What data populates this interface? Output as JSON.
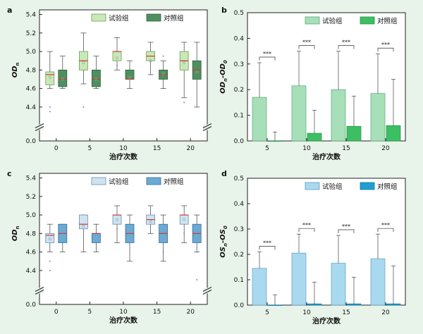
{
  "colors": {
    "background": "#e8f3e9",
    "boxTest": "#c9e8b8",
    "boxTestStroke": "#6c9e52",
    "boxCtrl": "#4f8f5f",
    "boxCtrlStroke": "#2f5f3a",
    "barTestB": "#a6dfb8",
    "barCtrlB": "#3cbf63",
    "boxTestD": "#cfe3f1",
    "boxCtrlD": "#6aaad5",
    "barTestD": "#a9d9ee",
    "barCtrlD": "#1fa0d0",
    "median": "#d0382b"
  },
  "chart_data": [
    {
      "panel": "a",
      "type": "box",
      "xlabel": "治疗次数",
      "ylabel_main": "OD",
      "ylabel_sub": "n",
      "categories": [
        "0",
        "5",
        "10",
        "15",
        "20"
      ],
      "yticks_upper": [
        "4.4",
        "4.6",
        "4.8",
        "5.0",
        "5.2",
        "5.4"
      ],
      "ytick_break": "0.0",
      "ylim_upper": [
        4.3,
        5.45
      ],
      "legend": [
        "试验组",
        "对照组"
      ],
      "series": [
        {
          "name": "试验组",
          "color_key": "boxTest",
          "boxes": [
            {
              "min": 4.6,
              "q1": 4.64,
              "median": 4.75,
              "mean": 4.72,
              "q3": 4.78,
              "max": 5.0,
              "outliers": [
                4.4,
                4.35
              ]
            },
            {
              "min": 4.65,
              "q1": 4.8,
              "median": 4.9,
              "mean": 4.88,
              "q3": 5.0,
              "max": 5.2,
              "outliers": [
                4.4
              ]
            },
            {
              "min": 4.8,
              "q1": 4.9,
              "median": 5.0,
              "mean": 4.93,
              "q3": 5.0,
              "max": 5.15,
              "outliers": [
                4.85
              ]
            },
            {
              "min": 4.75,
              "q1": 4.9,
              "median": 4.95,
              "mean": 4.9,
              "q3": 5.0,
              "max": 5.1,
              "outliers": [
                4.75
              ]
            },
            {
              "min": 4.5,
              "q1": 4.8,
              "median": 4.9,
              "mean": 4.88,
              "q3": 5.0,
              "max": 5.1,
              "outliers": [
                4.45
              ]
            }
          ]
        },
        {
          "name": "对照组",
          "color_key": "boxCtrl",
          "boxes": [
            {
              "min": 4.6,
              "q1": 4.62,
              "median": 4.7,
              "mean": 4.7,
              "q3": 4.8,
              "max": 4.95,
              "outliers": []
            },
            {
              "min": 4.6,
              "q1": 4.62,
              "median": 4.7,
              "mean": 4.7,
              "q3": 4.8,
              "max": 4.95,
              "outliers": []
            },
            {
              "min": 4.6,
              "q1": 4.7,
              "median": 4.7,
              "mean": 4.72,
              "q3": 4.8,
              "max": 4.9,
              "outliers": []
            },
            {
              "min": 4.6,
              "q1": 4.7,
              "median": 4.75,
              "mean": 4.76,
              "q3": 4.8,
              "max": 4.9,
              "outliers": [
                4.95
              ]
            },
            {
              "min": 4.4,
              "q1": 4.7,
              "median": 4.8,
              "mean": 4.78,
              "q3": 4.9,
              "max": 5.1,
              "outliers": [
                4.4
              ]
            }
          ]
        }
      ]
    },
    {
      "panel": "b",
      "type": "bar",
      "xlabel": "治疗次数",
      "ylabel": "OD",
      "ylabel_parts": [
        "OD",
        "n",
        "-OD",
        "0"
      ],
      "categories": [
        "5",
        "10",
        "15",
        "20"
      ],
      "ylim": [
        0,
        0.5
      ],
      "yticks": [
        "0.0",
        "0.1",
        "0.2",
        "0.3",
        "0.4",
        "0.5"
      ],
      "legend": [
        "试验组",
        "对照组"
      ],
      "significance": "***",
      "series": [
        {
          "name": "试验组",
          "color_key": "barTestB",
          "values": [
            0.17,
            0.215,
            0.2,
            0.185
          ],
          "err_high": [
            0.305,
            0.35,
            0.35,
            0.34
          ]
        },
        {
          "name": "对照组",
          "color_key": "barCtrlB",
          "values": [
            0.0,
            0.03,
            0.057,
            0.06
          ],
          "err_high": [
            0.035,
            0.12,
            0.175,
            0.24
          ]
        }
      ]
    },
    {
      "panel": "c",
      "type": "box",
      "xlabel": "治疗次数",
      "ylabel_main": "OD",
      "ylabel_sub": "n",
      "categories": [
        "0",
        "5",
        "10",
        "15",
        "20"
      ],
      "yticks_upper": [
        "4.4",
        "4.6",
        "4.8",
        "5.0",
        "5.2",
        "5.4"
      ],
      "ytick_break": "0.0",
      "ylim_upper": [
        4.3,
        5.45
      ],
      "legend": [
        "试验组",
        "对照组"
      ],
      "series": [
        {
          "name": "试验组",
          "color_key": "boxTestD",
          "boxes": [
            {
              "min": 4.6,
              "q1": 4.7,
              "median": 4.78,
              "mean": 4.74,
              "q3": 4.8,
              "max": 4.9,
              "outliers": [
                4.5,
                4.4
              ]
            },
            {
              "min": 4.6,
              "q1": 4.85,
              "median": 4.9,
              "mean": 4.88,
              "q3": 5.0,
              "max": 5.0,
              "outliers": []
            },
            {
              "min": 4.7,
              "q1": 4.9,
              "median": 5.0,
              "mean": 4.95,
              "q3": 5.0,
              "max": 5.1,
              "outliers": [
                4.85
              ]
            },
            {
              "min": 4.8,
              "q1": 4.9,
              "median": 4.95,
              "mean": 4.93,
              "q3": 5.0,
              "max": 5.1,
              "outliers": [
                4.8
              ]
            },
            {
              "min": 4.7,
              "q1": 4.9,
              "median": 5.0,
              "mean": 4.95,
              "q3": 5.0,
              "max": 5.1,
              "outliers": [
                4.8
              ]
            }
          ]
        },
        {
          "name": "对照组",
          "color_key": "boxCtrlD",
          "boxes": [
            {
              "min": 4.6,
              "q1": 4.7,
              "median": 4.8,
              "mean": 4.78,
              "q3": 4.9,
              "max": 4.9,
              "outliers": []
            },
            {
              "min": 4.6,
              "q1": 4.7,
              "median": 4.8,
              "mean": 4.75,
              "q3": 4.8,
              "max": 4.9,
              "outliers": []
            },
            {
              "min": 4.5,
              "q1": 4.7,
              "median": 4.8,
              "mean": 4.78,
              "q3": 4.9,
              "max": 5.0,
              "outliers": []
            },
            {
              "min": 4.5,
              "q1": 4.7,
              "median": 4.8,
              "mean": 4.77,
              "q3": 4.9,
              "max": 5.0,
              "outliers": [
                4.6
              ]
            },
            {
              "min": 4.6,
              "q1": 4.7,
              "median": 4.8,
              "mean": 4.77,
              "q3": 4.9,
              "max": 5.0,
              "outliers": [
                4.3,
                4.6
              ]
            }
          ]
        }
      ]
    },
    {
      "panel": "d",
      "type": "bar",
      "xlabel": "治疗次数",
      "ylabel": "OS",
      "ylabel_parts": [
        "OS",
        "n",
        "-OS",
        "0"
      ],
      "categories": [
        "5",
        "10",
        "15",
        "20"
      ],
      "ylim": [
        0,
        0.5
      ],
      "yticks": [
        "0.0",
        "0.1",
        "0.2",
        "0.3",
        "0.4",
        "0.5"
      ],
      "legend": [
        "试验组",
        "对照组"
      ],
      "significance": "***",
      "series": [
        {
          "name": "试验组",
          "color_key": "barTestD",
          "values": [
            0.145,
            0.205,
            0.165,
            0.183
          ],
          "err_high": [
            0.21,
            0.28,
            0.275,
            0.28
          ]
        },
        {
          "name": "对照组",
          "color_key": "barCtrlD",
          "values": [
            0.0,
            0.005,
            0.005,
            0.005
          ],
          "err_high": [
            0.04,
            0.09,
            0.11,
            0.155
          ]
        }
      ]
    }
  ]
}
